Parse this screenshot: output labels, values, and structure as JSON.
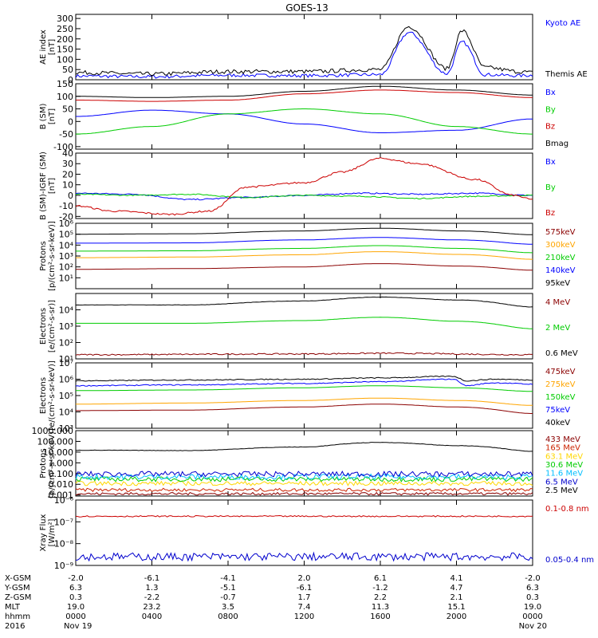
{
  "title": "GOES-13",
  "chart_data": {
    "type": "line",
    "title": "GOES-13",
    "panels": [
      {
        "id": "ae",
        "ylabel": "AE index\n[nT]",
        "scale": "linear",
        "ylim": [
          0,
          320
        ],
        "ticks": [
          0,
          50,
          100,
          150,
          200,
          250,
          300
        ],
        "tick_labels": [
          "0",
          "50",
          "100",
          "150",
          "200",
          "250",
          "300"
        ],
        "series": [
          {
            "name": "Kyoto AE",
            "color": "#0000ff",
            "x": [
              0,
              4,
              8,
              12,
              16,
              17.5,
              19.5,
              20.3,
              21.5,
              23.3,
              24
            ],
            "y": [
              18,
              15,
              22,
              20,
              25,
              230,
              30,
              185,
              25,
              20,
              22
            ],
            "noise": 8
          },
          {
            "name": "Themis AE",
            "color": "#000000",
            "x": [
              0,
              4,
              8,
              12,
              16,
              17.5,
              19.5,
              20.3,
              21.5,
              23.3,
              24
            ],
            "y": [
              35,
              28,
              40,
              40,
              50,
              260,
              55,
              240,
              60,
              40,
              35
            ],
            "noise": 10
          }
        ]
      },
      {
        "id": "bsm",
        "ylabel": "B (SM)\n[nT]",
        "scale": "linear",
        "ylim": [
          -110,
          150
        ],
        "ticks": [
          -100,
          -50,
          0,
          50,
          100,
          150
        ],
        "tick_labels": [
          "-100",
          "-50",
          "0",
          "50",
          "100",
          "150"
        ],
        "series": [
          {
            "name": "Bx",
            "color": "#0000ff",
            "x": [
              0,
              4,
              8,
              12,
              16,
              20,
              24
            ],
            "y": [
              20,
              45,
              30,
              -10,
              -45,
              -35,
              10
            ],
            "noise": 0
          },
          {
            "name": "By",
            "color": "#00cc00",
            "x": [
              0,
              4,
              8,
              12,
              16,
              20,
              24
            ],
            "y": [
              -50,
              -20,
              30,
              50,
              30,
              -20,
              -50
            ],
            "noise": 0
          },
          {
            "name": "Bz",
            "color": "#cc0000",
            "x": [
              0,
              4,
              8,
              12,
              16,
              20,
              24
            ],
            "y": [
              85,
              80,
              85,
              110,
              125,
              115,
              95
            ],
            "noise": 0
          },
          {
            "name": "Bmag",
            "color": "#000000",
            "x": [
              0,
              4,
              8,
              12,
              16,
              20,
              24
            ],
            "y": [
              100,
              95,
              100,
              120,
              140,
              125,
              105
            ],
            "noise": 0
          }
        ]
      },
      {
        "id": "birgf",
        "ylabel": "B (SM)-IGRF (SM)\n[nT]",
        "scale": "linear",
        "ylim": [
          -22,
          40
        ],
        "ticks": [
          -20,
          -10,
          0,
          10,
          20,
          30,
          40
        ],
        "tick_labels": [
          "-20",
          "-10",
          "0",
          "10",
          "20",
          "30",
          "40"
        ],
        "series": [
          {
            "name": "Bx",
            "color": "#0000ff",
            "x": [
              0,
              3,
              6,
              9,
              12,
              15,
              18,
              21,
              24
            ],
            "y": [
              2,
              1,
              -4,
              -2,
              0,
              2,
              1,
              2,
              0
            ],
            "noise": 0.6
          },
          {
            "name": "By",
            "color": "#00cc00",
            "x": [
              0,
              3,
              6,
              9,
              12,
              15,
              18,
              21,
              24
            ],
            "y": [
              1,
              0,
              1,
              -2,
              0,
              -1,
              -3,
              -1,
              0
            ],
            "noise": 0.5
          },
          {
            "name": "Bz",
            "color": "#cc0000",
            "x": [
              0,
              2,
              5,
              7,
              9,
              12,
              14,
              16,
              18,
              21,
              23,
              24
            ],
            "y": [
              -10,
              -15,
              -18,
              -15,
              8,
              12,
              22,
              35,
              30,
              15,
              0,
              -4
            ],
            "noise": 0.8
          }
        ]
      },
      {
        "id": "protons_mev_kev",
        "ylabel": "Protons\n[p/(cm²-s-sr-keV)]",
        "scale": "log",
        "ylim": [
          1,
          1000000
        ],
        "ticks": [
          10,
          100,
          1000,
          10000,
          100000,
          1000000
        ],
        "tick_labels": [
          "10¹",
          "10²",
          "10³",
          "10⁴",
          "10⁵",
          "10⁶"
        ],
        "series": [
          {
            "name": "575keV",
            "color": "#8b0000",
            "x": [
              0,
              6,
              12,
              16,
              20,
              24
            ],
            "y": [
              60,
              70,
              100,
              200,
              120,
              50
            ],
            "noise": 0
          },
          {
            "name": "300keV",
            "color": "#ffa500",
            "x": [
              0,
              6,
              12,
              16,
              20,
              24
            ],
            "y": [
              700,
              800,
              1300,
              2500,
              1400,
              500
            ],
            "noise": 0
          },
          {
            "name": "210keV",
            "color": "#00cc00",
            "x": [
              0,
              6,
              12,
              16,
              20,
              24
            ],
            "y": [
              2800,
              3000,
              5000,
              9000,
              5000,
              2000
            ],
            "noise": 0
          },
          {
            "name": "140keV",
            "color": "#0000ff",
            "x": [
              0,
              6,
              12,
              16,
              20,
              24
            ],
            "y": [
              15000,
              16000,
              30000,
              50000,
              30000,
              12000
            ],
            "noise": 0
          },
          {
            "name": "95keV",
            "color": "#000000",
            "x": [
              0,
              6,
              12,
              16,
              20,
              24
            ],
            "y": [
              100000,
              110000,
              200000,
              350000,
              200000,
              90000
            ],
            "noise": 0
          }
        ]
      },
      {
        "id": "electrons_mev",
        "ylabel": "Electrons\n[e/(cm²-s-sr)]",
        "scale": "log",
        "ylim": [
          10,
          100000
        ],
        "ticks": [
          10,
          100,
          1000,
          10000
        ],
        "tick_labels": [
          "10¹",
          "10²",
          "10³",
          "10⁴"
        ],
        "series": [
          {
            "name": "4 MeV",
            "color": "#8b0000",
            "x": [
              0,
              12,
              16,
              24
            ],
            "y": [
              18,
              20,
              22,
              18
            ],
            "noise": 0.04
          },
          {
            "name": "2 MeV",
            "color": "#00cc00",
            "x": [
              0,
              6,
              12,
              16,
              20,
              24
            ],
            "y": [
              1500,
              1500,
              2200,
              3500,
              2000,
              700
            ],
            "noise": 0
          },
          {
            "name": "0.6 MeV",
            "color": "#000000",
            "x": [
              0,
              6,
              12,
              16,
              20,
              24
            ],
            "y": [
              20000,
              20000,
              35000,
              60000,
              40000,
              15000
            ],
            "noise": 0.01
          }
        ]
      },
      {
        "id": "electrons_kev",
        "ylabel": "Electrons\n[e/(cm²-s-sr-keV)]",
        "scale": "log",
        "ylim": [
          1000,
          10000000
        ],
        "ticks": [
          1000,
          10000,
          100000,
          1000000,
          10000000
        ],
        "tick_labels": [
          "10³",
          "10⁴",
          "10⁵",
          "10⁶",
          "10⁷"
        ],
        "series": [
          {
            "name": "475keV",
            "color": "#8b0000",
            "x": [
              0,
              6,
              12,
              16,
              20,
              24
            ],
            "y": [
              12000,
              13000,
              20000,
              30000,
              20000,
              8000
            ],
            "noise": 0
          },
          {
            "name": "275keV",
            "color": "#ffa500",
            "x": [
              0,
              6,
              12,
              16,
              20,
              24
            ],
            "y": [
              30000,
              35000,
              50000,
              70000,
              50000,
              25000
            ],
            "noise": 0
          },
          {
            "name": "150keV",
            "color": "#00cc00",
            "x": [
              0,
              6,
              12,
              16,
              20,
              24
            ],
            "y": [
              200000,
              220000,
              300000,
              400000,
              300000,
              180000
            ],
            "noise": 0
          },
          {
            "name": "75keV",
            "color": "#0000ff",
            "x": [
              0,
              6,
              12,
              16,
              19.8,
              20.5,
              22,
              24
            ],
            "y": [
              400000,
              450000,
              550000,
              700000,
              1000000,
              400000,
              600000,
              500000
            ],
            "noise": 0.03
          },
          {
            "name": "40keV",
            "color": "#000000",
            "x": [
              0,
              6,
              12,
              16,
              19.8,
              20.5,
              22,
              24
            ],
            "y": [
              800000,
              900000,
              1000000,
              1200000,
              1500000,
              800000,
              1000000,
              900000
            ],
            "noise": 0.03
          }
        ]
      },
      {
        "id": "protons_mev",
        "ylabel": "Protons\n[p/(cm²-s-sr-keV)]",
        "scale": "log",
        "ylim": [
          0.0008,
          1000
        ],
        "ticks": [
          0.001,
          0.01,
          0.1,
          1,
          10,
          100,
          1000
        ],
        "tick_labels": [
          "0.001",
          "0.010",
          "0.100",
          "1.000",
          "10.000",
          "100.000",
          "1000.000"
        ],
        "series": [
          {
            "name": "433 MeV",
            "color": "#8b0000",
            "x": [
              0,
              24
            ],
            "y": [
              0.0013,
              0.0013
            ],
            "noise": 0.12
          },
          {
            "name": "165 MeV",
            "color": "#cc2200",
            "x": [
              0,
              24
            ],
            "y": [
              0.003,
              0.003
            ],
            "noise": 0.15
          },
          {
            "name": "63.1 MeV",
            "color": "#ffd700",
            "x": [
              0,
              24
            ],
            "y": [
              0.012,
              0.012
            ],
            "noise": 0.2
          },
          {
            "name": "30.6 MeV",
            "color": "#00cc00",
            "x": [
              0,
              24
            ],
            "y": [
              0.03,
              0.03
            ],
            "noise": 0.22
          },
          {
            "name": "11.6 MeV",
            "color": "#00bfff",
            "x": [
              0,
              24
            ],
            "y": [
              0.05,
              0.05
            ],
            "noise": 0.25
          },
          {
            "name": "6.5 MeV",
            "color": "#0000cd",
            "x": [
              0,
              24
            ],
            "y": [
              0.09,
              0.09
            ],
            "noise": 0.25
          },
          {
            "name": "2.5 MeV",
            "color": "#000000",
            "x": [
              0,
              6,
              12,
              16,
              20,
              24
            ],
            "y": [
              15,
              14,
              30,
              80,
              40,
              12
            ],
            "noise": 0.02
          }
        ]
      },
      {
        "id": "xray",
        "ylabel": "Xray Flux\n[W/m²]",
        "scale": "log",
        "ylim": [
          1e-09,
          1e-06
        ],
        "ticks": [
          1e-09,
          1e-08,
          1e-07,
          1e-06
        ],
        "tick_labels": [
          "10⁻⁹",
          "10⁻⁸",
          "10⁻⁷",
          "10⁻⁶"
        ],
        "series": [
          {
            "name": "0.1-0.8 nm",
            "color": "#cc0000",
            "x": [
              0,
              24
            ],
            "y": [
              1.8e-07,
              1.8e-07
            ],
            "noise": 0.03
          },
          {
            "name": "0.05-0.4 nm",
            "color": "#0000cd",
            "x": [
              0,
              24
            ],
            "y": [
              2.5e-09,
              2.5e-09
            ],
            "noise": 0.18
          }
        ]
      }
    ],
    "x_axis": {
      "tick_hours": [
        0,
        4,
        8,
        12,
        16,
        20,
        24
      ],
      "rows": [
        {
          "name": "X-GSM",
          "values": [
            "-2.0",
            "-6.1",
            "-4.1",
            "2.0",
            "6.1",
            "4.1",
            "-2.0"
          ]
        },
        {
          "name": "Y-GSM",
          "values": [
            "6.3",
            "1.3",
            "-5.1",
            "-6.1",
            "-1.2",
            "4.7",
            "6.3"
          ]
        },
        {
          "name": "Z-GSM",
          "values": [
            "0.3",
            "-2.2",
            "-0.7",
            "1.7",
            "2.2",
            "2.1",
            "0.3"
          ]
        },
        {
          "name": "MLT",
          "values": [
            "19.0",
            "23.2",
            "3.5",
            "7.4",
            "11.3",
            "15.1",
            "19.0"
          ]
        },
        {
          "name": "hhmm",
          "values": [
            "0000",
            "0400",
            "0800",
            "1200",
            "1600",
            "2000",
            "0000"
          ]
        },
        {
          "name": "2016",
          "values": [
            "Nov 19",
            "",
            "",
            "",
            "",
            "",
            "Nov 20"
          ]
        }
      ]
    }
  }
}
